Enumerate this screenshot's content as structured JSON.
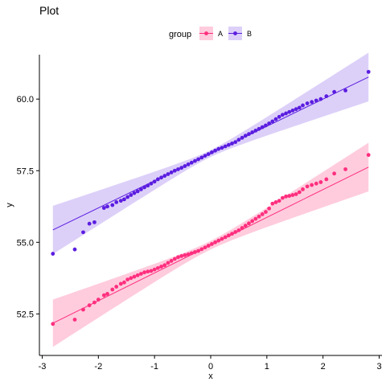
{
  "chart_data": {
    "type": "scatter",
    "title": "Plot",
    "xlabel": "x",
    "ylabel": "y",
    "xlim": [
      -3.05,
      3.05
    ],
    "ylim": [
      51.05,
      61.55
    ],
    "x_ticks": [
      -3,
      -2,
      -1,
      0,
      1,
      2,
      3
    ],
    "y_ticks": [
      52.5,
      55.0,
      57.5,
      60.0
    ],
    "x_tick_labels": [
      "-3",
      "-2",
      "-1",
      "0",
      "1",
      "2",
      "3"
    ],
    "y_tick_labels": [
      "52.5",
      "55.0",
      "57.5",
      "60.0"
    ],
    "legend": {
      "title": "group",
      "position": "top",
      "entries": [
        "A",
        "B"
      ]
    },
    "grid": false,
    "colors": {
      "A": "#ff2e7e",
      "B": "#5b1de0",
      "A_band": "#ffb6cf",
      "B_band": "#cdbcf7"
    },
    "series": [
      {
        "name": "A",
        "fit": {
          "intercept": 54.9,
          "slope": 0.97
        },
        "band_halfwidth": {
          "edge": 0.85,
          "center": 0.15
        },
        "points": [
          [
            -2.81,
            52.15
          ],
          [
            -2.42,
            52.3
          ],
          [
            -2.27,
            52.65
          ],
          [
            -2.16,
            52.8
          ],
          [
            -2.07,
            52.9
          ],
          [
            -2.0,
            53.0
          ],
          [
            -1.9,
            53.15
          ],
          [
            -1.84,
            53.2
          ],
          [
            -1.75,
            53.35
          ],
          [
            -1.68,
            53.45
          ],
          [
            -1.6,
            53.55
          ],
          [
            -1.54,
            53.6
          ],
          [
            -1.48,
            53.7
          ],
          [
            -1.42,
            53.75
          ],
          [
            -1.36,
            53.8
          ],
          [
            -1.3,
            53.85
          ],
          [
            -1.24,
            53.9
          ],
          [
            -1.18,
            53.95
          ],
          [
            -1.12,
            53.98
          ],
          [
            -1.06,
            54.0
          ],
          [
            -1.0,
            54.05
          ],
          [
            -0.94,
            54.1
          ],
          [
            -0.88,
            54.15
          ],
          [
            -0.82,
            54.2
          ],
          [
            -0.76,
            54.28
          ],
          [
            -0.7,
            54.35
          ],
          [
            -0.64,
            54.42
          ],
          [
            -0.58,
            54.48
          ],
          [
            -0.52,
            54.52
          ],
          [
            -0.46,
            54.55
          ],
          [
            -0.4,
            54.58
          ],
          [
            -0.34,
            54.62
          ],
          [
            -0.28,
            54.66
          ],
          [
            -0.22,
            54.7
          ],
          [
            -0.16,
            54.76
          ],
          [
            -0.1,
            54.82
          ],
          [
            -0.04,
            54.88
          ],
          [
            0.02,
            54.94
          ],
          [
            0.08,
            55.0
          ],
          [
            0.14,
            55.06
          ],
          [
            0.2,
            55.12
          ],
          [
            0.26,
            55.18
          ],
          [
            0.32,
            55.24
          ],
          [
            0.38,
            55.3
          ],
          [
            0.44,
            55.36
          ],
          [
            0.5,
            55.42
          ],
          [
            0.56,
            55.5
          ],
          [
            0.62,
            55.58
          ],
          [
            0.68,
            55.66
          ],
          [
            0.74,
            55.74
          ],
          [
            0.8,
            55.82
          ],
          [
            0.86,
            55.9
          ],
          [
            0.92,
            55.98
          ],
          [
            0.98,
            56.06
          ],
          [
            1.04,
            56.18
          ],
          [
            1.1,
            56.35
          ],
          [
            1.16,
            56.4
          ],
          [
            1.22,
            56.45
          ],
          [
            1.28,
            56.55
          ],
          [
            1.34,
            56.6
          ],
          [
            1.4,
            56.62
          ],
          [
            1.46,
            56.65
          ],
          [
            1.52,
            56.68
          ],
          [
            1.58,
            56.75
          ],
          [
            1.64,
            56.85
          ],
          [
            1.72,
            56.95
          ],
          [
            1.8,
            57.0
          ],
          [
            1.88,
            57.05
          ],
          [
            1.96,
            57.1
          ],
          [
            2.06,
            57.2
          ],
          [
            2.2,
            57.4
          ],
          [
            2.4,
            57.55
          ],
          [
            2.81,
            58.05
          ]
        ]
      },
      {
        "name": "B",
        "fit": {
          "intercept": 58.1,
          "slope": 0.95
        },
        "band_halfwidth": {
          "edge": 0.85,
          "center": 0.12
        },
        "points": [
          [
            -2.81,
            54.6
          ],
          [
            -2.42,
            54.75
          ],
          [
            -2.27,
            55.35
          ],
          [
            -2.16,
            55.65
          ],
          [
            -2.07,
            55.7
          ],
          [
            -1.9,
            56.2
          ],
          [
            -1.84,
            56.25
          ],
          [
            -1.75,
            56.3
          ],
          [
            -1.68,
            56.4
          ],
          [
            -1.6,
            56.45
          ],
          [
            -1.54,
            56.5
          ],
          [
            -1.48,
            56.58
          ],
          [
            -1.42,
            56.65
          ],
          [
            -1.36,
            56.72
          ],
          [
            -1.3,
            56.78
          ],
          [
            -1.24,
            56.85
          ],
          [
            -1.18,
            56.92
          ],
          [
            -1.12,
            56.98
          ],
          [
            -1.06,
            57.05
          ],
          [
            -1.0,
            57.12
          ],
          [
            -0.94,
            57.2
          ],
          [
            -0.88,
            57.26
          ],
          [
            -0.82,
            57.32
          ],
          [
            -0.76,
            57.38
          ],
          [
            -0.7,
            57.44
          ],
          [
            -0.64,
            57.5
          ],
          [
            -0.58,
            57.55
          ],
          [
            -0.52,
            57.6
          ],
          [
            -0.46,
            57.66
          ],
          [
            -0.4,
            57.72
          ],
          [
            -0.34,
            57.78
          ],
          [
            -0.28,
            57.84
          ],
          [
            -0.22,
            57.9
          ],
          [
            -0.16,
            57.96
          ],
          [
            -0.1,
            58.02
          ],
          [
            -0.04,
            58.08
          ],
          [
            0.02,
            58.14
          ],
          [
            0.08,
            58.2
          ],
          [
            0.14,
            58.26
          ],
          [
            0.2,
            58.3
          ],
          [
            0.26,
            58.35
          ],
          [
            0.32,
            58.4
          ],
          [
            0.38,
            58.45
          ],
          [
            0.44,
            58.5
          ],
          [
            0.5,
            58.58
          ],
          [
            0.56,
            58.65
          ],
          [
            0.62,
            58.72
          ],
          [
            0.68,
            58.78
          ],
          [
            0.74,
            58.84
          ],
          [
            0.8,
            58.9
          ],
          [
            0.86,
            58.96
          ],
          [
            0.92,
            59.02
          ],
          [
            0.98,
            59.08
          ],
          [
            1.04,
            59.15
          ],
          [
            1.1,
            59.22
          ],
          [
            1.16,
            59.3
          ],
          [
            1.22,
            59.38
          ],
          [
            1.28,
            59.45
          ],
          [
            1.34,
            59.5
          ],
          [
            1.4,
            59.55
          ],
          [
            1.46,
            59.6
          ],
          [
            1.52,
            59.65
          ],
          [
            1.58,
            59.7
          ],
          [
            1.64,
            59.78
          ],
          [
            1.72,
            59.85
          ],
          [
            1.8,
            59.9
          ],
          [
            1.88,
            59.95
          ],
          [
            1.96,
            60.0
          ],
          [
            2.06,
            60.1
          ],
          [
            2.2,
            60.25
          ],
          [
            2.4,
            60.3
          ],
          [
            2.81,
            60.95
          ]
        ]
      }
    ]
  }
}
